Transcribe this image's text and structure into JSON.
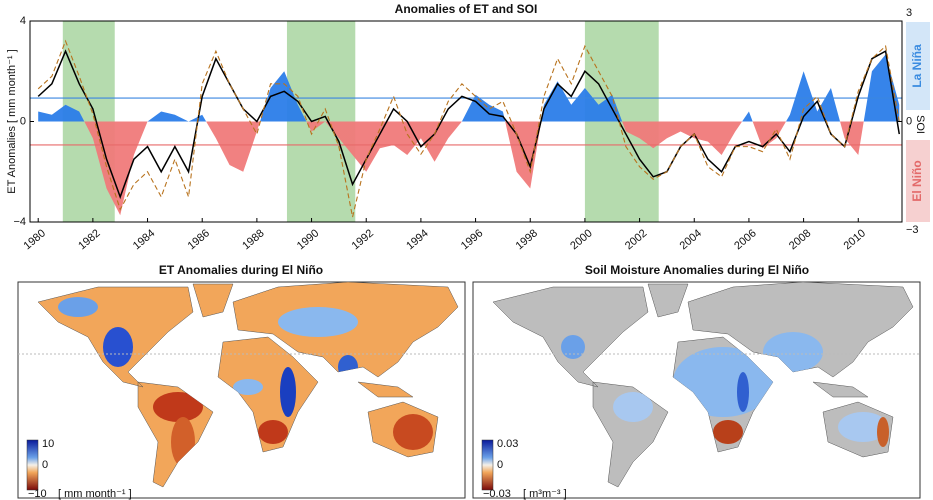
{
  "chart_data": {
    "type": "line",
    "title": "Anomalies of ET and SOI",
    "y_label": "ET Anomalies [ mm month⁻¹ ]",
    "y2_label": "SOI",
    "side_labels": [
      "La Niña",
      "El Niño"
    ],
    "x": [
      1980,
      1980.5,
      1981,
      1981.5,
      1982,
      1982.5,
      1983,
      1983.5,
      1984,
      1984.5,
      1985,
      1985.5,
      1986,
      1986.5,
      1987,
      1987.5,
      1988,
      1988.5,
      1989,
      1989.5,
      1990,
      1990.5,
      1991,
      1991.5,
      1992,
      1992.5,
      1993,
      1993.5,
      1994,
      1994.5,
      1995,
      1995.5,
      1996,
      1996.5,
      1997,
      1997.5,
      1998,
      1998.5,
      1999,
      1999.5,
      2000,
      2000.5,
      2001,
      2001.5,
      2002,
      2002.5,
      2003,
      2003.5,
      2004,
      2004.5,
      2005,
      2005.5,
      2006,
      2006.5,
      2007,
      2007.5,
      2008,
      2008.5,
      2009,
      2009.5,
      2010,
      2010.5,
      2011,
      2011.5
    ],
    "series": [
      {
        "color": "#000000",
        "values": [
          1.0,
          1.5,
          2.8,
          1.5,
          0.5,
          -1.5,
          -3.0,
          -1.5,
          -1.0,
          -2.0,
          -1.0,
          -2.0,
          1.0,
          2.5,
          1.5,
          0.5,
          0.0,
          1.0,
          1.2,
          0.8,
          0.0,
          0.2,
          -0.8,
          -2.5,
          -1.5,
          -0.5,
          0.5,
          0.0,
          -1.0,
          -0.5,
          0.5,
          1.0,
          0.8,
          0.3,
          0.2,
          -0.5,
          -1.8,
          0.5,
          1.5,
          1.0,
          2.0,
          1.5,
          0.5,
          -0.5,
          -1.5,
          -2.2,
          -2.0,
          -1.0,
          -0.5,
          -1.5,
          -2.0,
          -1.0,
          -0.8,
          -1.0,
          -0.5,
          -1.2,
          0.2,
          0.8,
          -0.5,
          -1.0,
          1.0,
          2.5,
          2.8,
          -0.5
        ]
      },
      {
        "color": "#b8731e",
        "dashed": true,
        "values": [
          1.3,
          1.8,
          3.2,
          1.8,
          0.3,
          -1.8,
          -3.5,
          -2.5,
          -2.0,
          -3.0,
          -1.5,
          -3.0,
          1.5,
          2.8,
          1.5,
          0.5,
          -0.5,
          1.5,
          1.5,
          1.0,
          -0.5,
          0.5,
          -1.0,
          -3.8,
          -1.5,
          -0.3,
          1.0,
          -0.5,
          -1.3,
          -0.5,
          0.8,
          1.5,
          1.0,
          0.5,
          0.8,
          -0.5,
          -2.0,
          1.0,
          2.5,
          1.5,
          3.0,
          2.0,
          1.0,
          -1.0,
          -1.8,
          -2.3,
          -2.0,
          -1.0,
          -0.5,
          -1.8,
          -2.2,
          -1.0,
          -1.0,
          -1.2,
          -0.3,
          -1.5,
          0.5,
          1.0,
          -0.5,
          -1.0,
          1.2,
          2.5,
          3.0,
          0.0
        ]
      },
      {
        "axis": "y2",
        "color": "#2b7de9",
        "negative_color": "#f07a7a",
        "values": [
          0.3,
          0.2,
          0.5,
          0.3,
          -0.5,
          -2.0,
          -2.8,
          -1.0,
          0.0,
          0.3,
          0.2,
          0.0,
          0.2,
          -0.5,
          -1.3,
          -1.5,
          -0.3,
          1.0,
          1.5,
          0.5,
          -0.3,
          0.0,
          -0.5,
          -1.0,
          -1.5,
          -0.8,
          -0.7,
          -1.0,
          -0.5,
          -1.2,
          -0.5,
          0.0,
          0.8,
          0.5,
          0.3,
          -1.5,
          -2.0,
          0.5,
          1.2,
          0.5,
          1.0,
          0.5,
          0.8,
          -0.3,
          -0.5,
          -0.8,
          -0.5,
          -0.3,
          -0.5,
          -0.6,
          -1.0,
          -0.3,
          0.3,
          -0.8,
          -0.5,
          0.2,
          1.5,
          0.3,
          1.0,
          -0.5,
          -1.0,
          1.5,
          2.0,
          0.5
        ]
      }
    ],
    "shaded_periods": [
      [
        1980.9,
        1982.8
      ],
      [
        1989.1,
        1991.6
      ],
      [
        2000.0,
        2002.7
      ]
    ],
    "shade_color": "#b5dbae",
    "y2_reference_lines": [
      {
        "value": 0.7,
        "color": "#3a86e0"
      },
      {
        "value": -0.7,
        "color": "#e86a6a"
      }
    ],
    "xlim": [
      1979.7,
      2011.6
    ],
    "xticks": [
      1980,
      1982,
      1984,
      1986,
      1988,
      1990,
      1992,
      1994,
      1996,
      1998,
      2000,
      2002,
      2004,
      2006,
      2008,
      2010
    ],
    "ylim": [
      -4,
      4
    ],
    "yticks": [
      {
        "value": -4,
        "label": "−4"
      },
      0,
      4
    ],
    "y2lim": [
      -3,
      3
    ],
    "y2ticks": [
      {
        "value": -3,
        "label": "−3"
      },
      0,
      3
    ]
  },
  "maps": [
    {
      "title": "ET Anomalies during El Niño",
      "colorbar_ticks": [
        "10",
        "0",
        "−10"
      ],
      "units": "[ mm month⁻¹ ]"
    },
    {
      "title": "Soil Moisture Anomalies during El Niño",
      "colorbar_ticks": [
        "0.03",
        "0",
        "−0.03"
      ],
      "units": "[ m³m⁻³ ]"
    }
  ]
}
